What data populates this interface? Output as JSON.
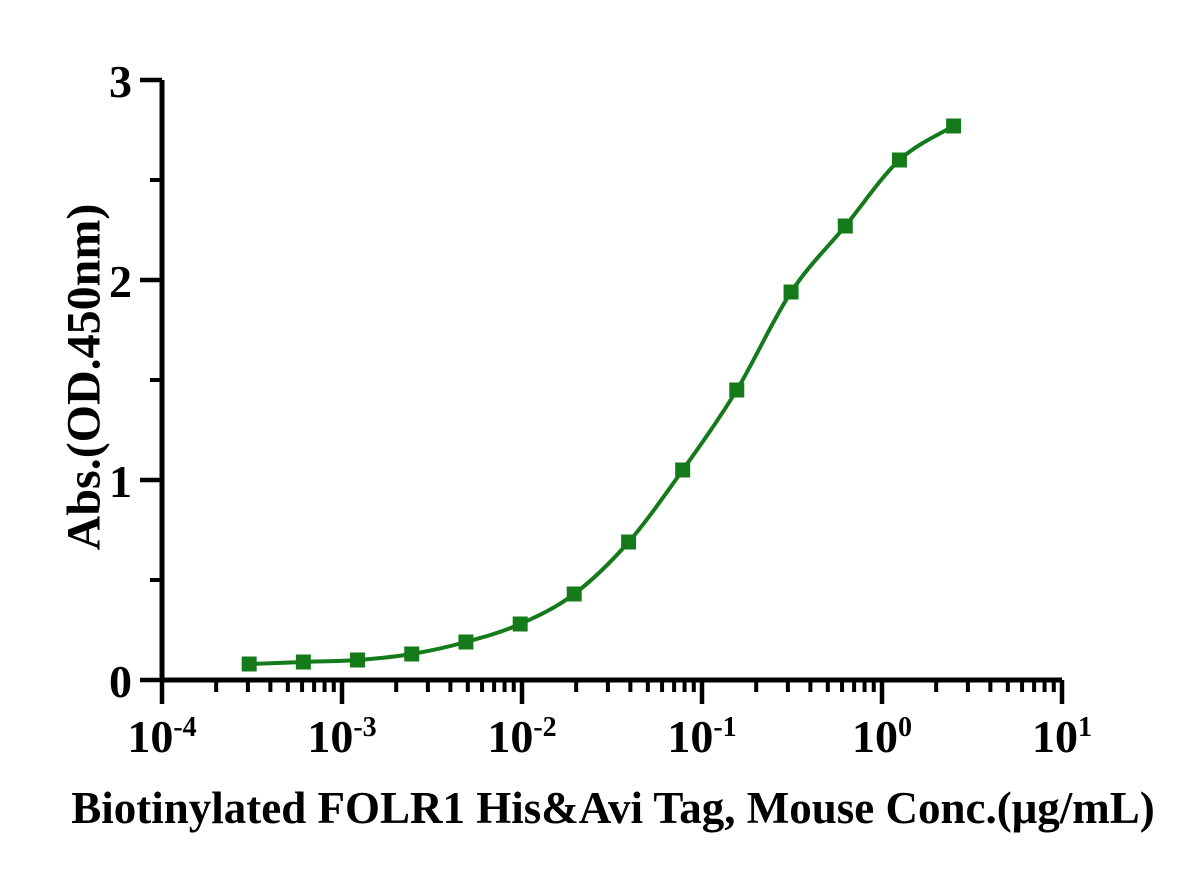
{
  "chart_data": {
    "type": "line",
    "title": "",
    "xlabel": "Biotinylated FOLR1 His&Avi Tag, Mouse Conc.(μg/mL)",
    "ylabel": "Abs.(OD.450nm)",
    "x_scale": "log10",
    "grid": false,
    "legend_position": "none",
    "x_axis": {
      "tick_base": "10",
      "major_tick_exponents": [
        -4,
        -3,
        -2,
        -1,
        0,
        1
      ],
      "range_exponents": [
        -4,
        1
      ],
      "minor_tick_multiples": [
        2,
        3,
        4,
        5,
        6,
        7,
        8,
        9
      ]
    },
    "y_axis": {
      "range": [
        0,
        3
      ],
      "major_ticks": [
        0,
        1,
        2,
        3
      ],
      "minor_ticks": [
        0.5,
        1.5,
        2.5
      ]
    },
    "series": [
      {
        "name": "Biotinylated FOLR1 His&Avi Tag, Mouse",
        "marker": "filled-square",
        "color": "#157a1a",
        "x": [
          0.000305,
          0.00061,
          0.00122,
          0.00244,
          0.00488,
          0.00977,
          0.0195,
          0.0391,
          0.0781,
          0.156,
          0.3125,
          0.625,
          1.25,
          2.5
        ],
        "y": [
          0.08,
          0.09,
          0.1,
          0.13,
          0.19,
          0.28,
          0.43,
          0.69,
          1.05,
          1.45,
          1.94,
          2.27,
          2.6,
          2.77
        ]
      }
    ],
    "colors": {
      "curve": "#157a1a",
      "axis": "#000000",
      "text": "#000000",
      "background": "#ffffff"
    }
  }
}
